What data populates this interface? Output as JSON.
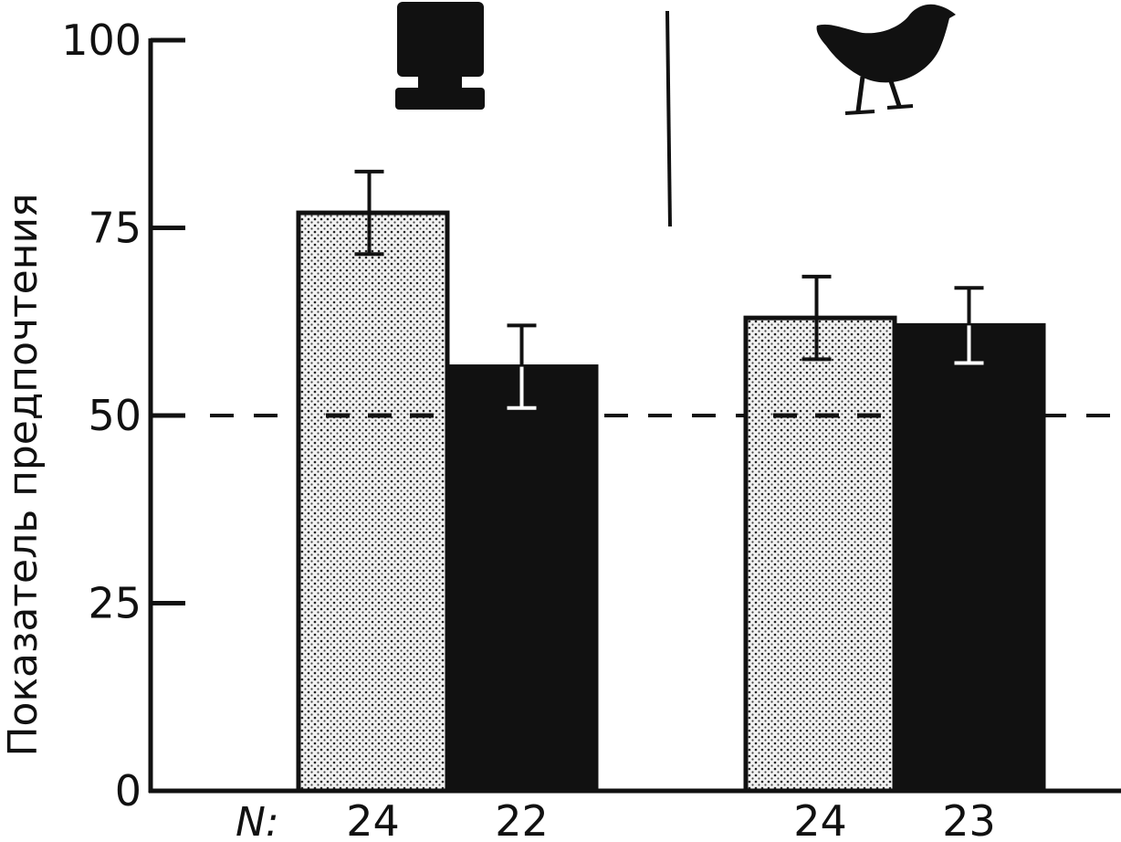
{
  "chart_data": {
    "type": "bar",
    "ylabel": "Показатель предпочтения",
    "ylim": [
      0,
      100
    ],
    "yticks": [
      0,
      25,
      50,
      75,
      100
    ],
    "reference_line": 50,
    "n_prefix": "N:",
    "groups": [
      {
        "icon": "tv-monitor-icon",
        "bars": [
          {
            "fill": "stippled",
            "value": 77,
            "error": 5.5,
            "n": "24"
          },
          {
            "fill": "solid",
            "value": 56.5,
            "error": 5.5,
            "n": "22"
          }
        ]
      },
      {
        "icon": "chicken-icon",
        "bars": [
          {
            "fill": "stippled",
            "value": 63,
            "error": 5.5,
            "n": "24"
          },
          {
            "fill": "solid",
            "value": 62,
            "error": 5,
            "n": "23"
          }
        ]
      }
    ],
    "grid": false,
    "legend": "none",
    "colors": {
      "ink": "#111111",
      "stipple_bg": "#f2f2f2"
    }
  }
}
